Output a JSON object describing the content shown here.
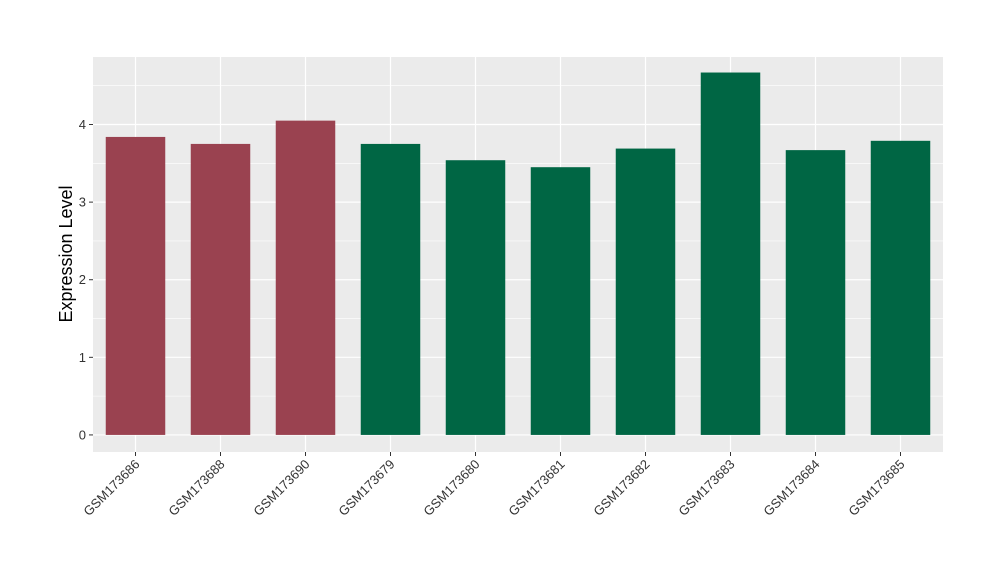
{
  "chart_data": {
    "type": "bar",
    "title": "",
    "xlabel": "",
    "ylabel": "Expression Level",
    "ylim": [
      -0.22,
      4.87
    ],
    "yticks": [
      0,
      1,
      2,
      3,
      4
    ],
    "grid": true,
    "legend": "none",
    "categories": [
      "GSM173686",
      "GSM173688",
      "GSM173690",
      "GSM173679",
      "GSM173680",
      "GSM173681",
      "GSM173682",
      "GSM173683",
      "GSM173684",
      "GSM173685"
    ],
    "values": [
      3.84,
      3.75,
      4.05,
      3.75,
      3.54,
      3.45,
      3.69,
      4.67,
      3.67,
      3.79
    ],
    "bar_colors": [
      "#9a4250",
      "#9a4250",
      "#9a4250",
      "#006644",
      "#006644",
      "#006644",
      "#006644",
      "#006644",
      "#006644",
      "#006644"
    ],
    "colors": {
      "panel": "#ebebeb",
      "grid": "#ffffff",
      "text": "#333333"
    }
  }
}
